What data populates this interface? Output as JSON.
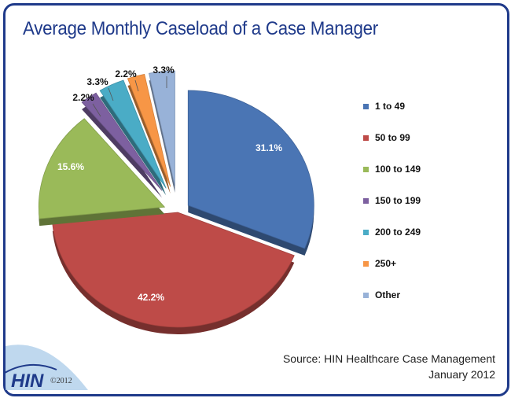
{
  "chart_data": {
    "type": "pie",
    "title": "Average Monthly Caseload of a Case Manager",
    "categories": [
      "1 to 49",
      "50 to 99",
      "100 to 149",
      "150 to 199",
      "200 to 249",
      "250+",
      "Other"
    ],
    "values": [
      31.1,
      42.2,
      15.6,
      2.2,
      3.3,
      2.2,
      3.3
    ],
    "data_labels": [
      "31.1%",
      "42.2%",
      "15.6%",
      "2.2%",
      "3.3%",
      "2.2%",
      "3.3%"
    ],
    "colors": [
      "#4a75b4",
      "#be4b48",
      "#9aba59",
      "#7d60a0",
      "#4aacc6",
      "#f79646",
      "#98b2d8"
    ],
    "legend_position": "right",
    "exploded": true,
    "style": "3d"
  },
  "source": {
    "line1": "Source: HIN Healthcare Case Management",
    "line2": "January 2012"
  },
  "logo": {
    "text": "HIN",
    "copyright": "©2012"
  }
}
